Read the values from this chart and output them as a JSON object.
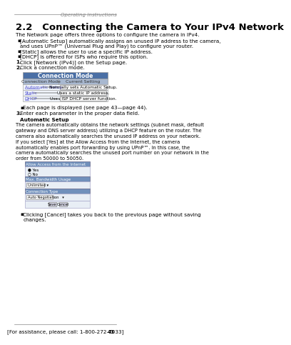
{
  "page_bg": "#ffffff",
  "header_text": "Operating Instructions",
  "title": "2.2   Connecting the Camera to Your IPv4 Network",
  "title_fontsize": 9.5,
  "header_fontsize": 5,
  "body_fontsize": 5.2,
  "small_fontsize": 4.5,
  "intro_text": "The Network page offers three options to configure the camera in IPv4.",
  "bullets": [
    "[Automatic Setup] automatically assigns an unused IP address to the camera,\nand uses UPnP™ (Universal Plug and Play) to configure your router.",
    "[Static] allows the user to use a specific IP address.",
    "[DHCP] is offered for ISPs who require this option."
  ],
  "steps": [
    "Click [Network (IPv4)] on the Setup page.",
    "Click a connection mode."
  ],
  "table_header": "Connection Mode",
  "table_col1": "Connection Mode",
  "table_col2": "Current Setting",
  "table_header_bg": "#4a6fa5",
  "table_subheader_bg": "#a8b8d0",
  "table_rows": [
    [
      "Automatic Setup",
      "Normally sets Automatic Setup."
    ],
    [
      "Static",
      "Uses a static IP address."
    ],
    [
      "DHCP",
      "Uses ISP DHCP server function."
    ]
  ],
  "link_color": "#4444cc",
  "bullet3": "Each page is displayed (see page 43—page 44).",
  "step3": "Enter each parameter in the proper data field.",
  "auto_setup_bold": "Automatic Setup",
  "auto_setup_body": "The camera automatically obtains the network settings (subnet mask, default\ngateway and DNS server address) utilizing a DHCP feature on the router. The\ncamera also automatically searches the unused IP address on your network.\nIf you select [Yes] at the Allow Access from the Internet, the camera\nautomatically enables port forwarding by using UPnP™. In this case, the\ncamera automatically searches the unused port number on your network in the\norder from 50000 to 50050.",
  "ui_box_header1": "Allow Access from the Internet",
  "ui_radio1": "● Yes",
  "ui_radio2": "○ No",
  "ui_box_header2": "Max. Bandwidth Usage",
  "ui_dropdown1": "Unlimited ▾",
  "ui_box_header3": "Connection Type",
  "ui_dropdown2": "Auto Negotiation   ▾",
  "ui_buttons": [
    "Save",
    "Cancel"
  ],
  "final_bullet": "Clicking [Cancel] takes you back to the previous page without saving\nchanges.",
  "footer_text": "[For assistance, please call: 1-800-272-7033]",
  "footer_page": "43",
  "top_right_text": "Operating Instructions"
}
